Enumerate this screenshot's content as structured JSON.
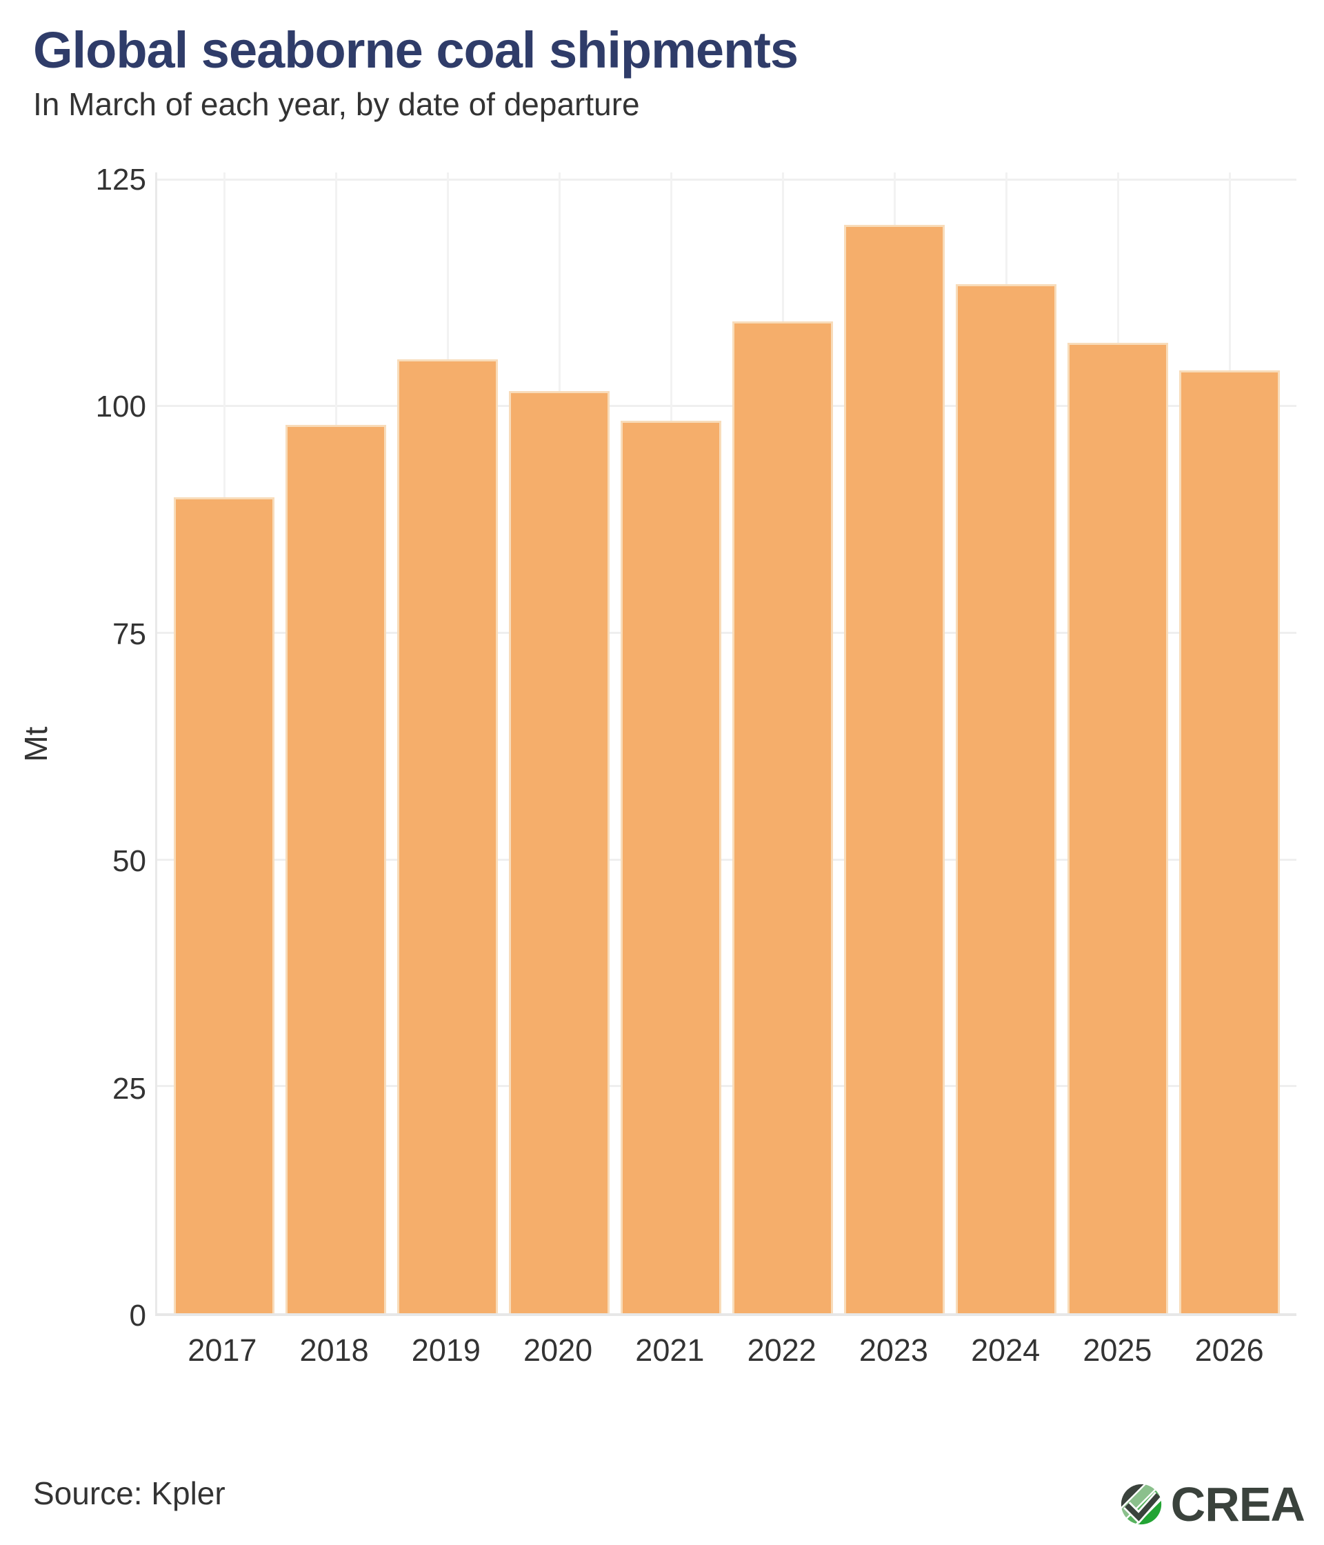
{
  "header": {
    "title": "Global seaborne coal shipments",
    "subtitle": "In March of each year, by date of departure"
  },
  "chart_data": {
    "type": "bar",
    "title": "Global seaborne coal shipments",
    "subtitle": "In March of each year, by date of departure",
    "categories": [
      "2017",
      "2018",
      "2019",
      "2020",
      "2021",
      "2022",
      "2023",
      "2024",
      "2025",
      "2026"
    ],
    "values": [
      90,
      98,
      105.2,
      101.7,
      98.4,
      109.4,
      120,
      113.5,
      107,
      104
    ],
    "xlabel": "",
    "ylabel": "Mt",
    "ylim": [
      0,
      125.8
    ],
    "yticks": [
      0,
      25,
      50,
      75,
      100,
      125
    ],
    "grid": "both",
    "legend": "none",
    "bar_color": "#F5AE6B",
    "bar_edge_color": "#F8DCBA",
    "grid_color": "#EFEFEF",
    "title_color": "#2F3C69",
    "text_color": "#333333"
  },
  "footer": {
    "source": "Source: Kpler",
    "logo_text": "CREA",
    "logo_colors": {
      "dark": "#3A423C",
      "light_green": "#8BC08C",
      "mid_green": "#57B25E",
      "bright_green": "#23A434"
    }
  }
}
